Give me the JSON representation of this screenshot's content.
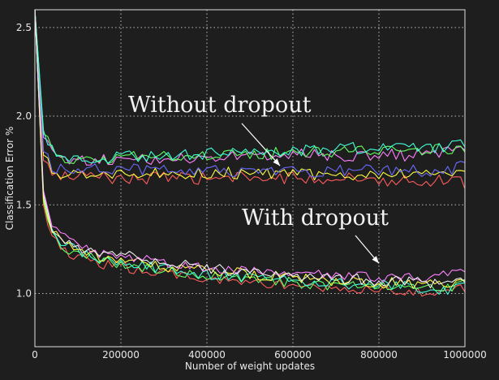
{
  "chart_data": {
    "type": "line",
    "title": "",
    "xlabel": "Number of weight updates",
    "ylabel": "Classification Error %",
    "xlim": [
      0,
      1000000
    ],
    "ylim": [
      0.7,
      2.6
    ],
    "xticks": [
      0,
      200000,
      400000,
      600000,
      800000,
      1000000
    ],
    "xtick_labels": [
      "0",
      "200000",
      "400000",
      "600000",
      "800000",
      "1000000"
    ],
    "yticks": [
      1.0,
      1.5,
      2.0,
      2.5
    ],
    "ytick_labels": [
      "1.0",
      "1.5",
      "2.0",
      "2.5"
    ],
    "grid": true,
    "legend": "none",
    "x": [
      0,
      20000,
      40000,
      60000,
      80000,
      100000,
      150000,
      200000,
      250000,
      300000,
      350000,
      400000,
      450000,
      500000,
      550000,
      600000,
      650000,
      700000,
      750000,
      800000,
      850000,
      900000,
      950000,
      1000000
    ],
    "series": [
      {
        "group": "without",
        "color": "#ff5c5c",
        "values": [
          2.55,
          1.75,
          1.68,
          1.66,
          1.66,
          1.66,
          1.66,
          1.65,
          1.65,
          1.65,
          1.65,
          1.65,
          1.65,
          1.65,
          1.65,
          1.65,
          1.65,
          1.65,
          1.65,
          1.64,
          1.64,
          1.64,
          1.64,
          1.62
        ]
      },
      {
        "group": "without",
        "color": "#ffff40",
        "values": [
          2.6,
          1.78,
          1.7,
          1.68,
          1.68,
          1.68,
          1.68,
          1.68,
          1.68,
          1.68,
          1.68,
          1.68,
          1.68,
          1.67,
          1.67,
          1.67,
          1.67,
          1.67,
          1.67,
          1.67,
          1.67,
          1.67,
          1.67,
          1.66
        ]
      },
      {
        "group": "without",
        "color": "#6a6aff",
        "values": [
          2.6,
          1.8,
          1.72,
          1.7,
          1.7,
          1.7,
          1.7,
          1.7,
          1.7,
          1.69,
          1.69,
          1.69,
          1.69,
          1.69,
          1.69,
          1.69,
          1.69,
          1.69,
          1.69,
          1.69,
          1.69,
          1.69,
          1.69,
          1.72
        ]
      },
      {
        "group": "without",
        "color": "#ff80ff",
        "values": [
          2.6,
          1.88,
          1.78,
          1.75,
          1.75,
          1.75,
          1.75,
          1.75,
          1.76,
          1.76,
          1.76,
          1.77,
          1.77,
          1.77,
          1.77,
          1.78,
          1.78,
          1.78,
          1.78,
          1.78,
          1.78,
          1.78,
          1.79,
          1.8
        ]
      },
      {
        "group": "without",
        "color": "#60ff60",
        "values": [
          2.6,
          1.9,
          1.8,
          1.77,
          1.76,
          1.76,
          1.76,
          1.76,
          1.77,
          1.77,
          1.77,
          1.78,
          1.78,
          1.79,
          1.79,
          1.79,
          1.8,
          1.8,
          1.8,
          1.8,
          1.81,
          1.81,
          1.81,
          1.8
        ]
      },
      {
        "group": "without",
        "color": "#40ffd8",
        "values": [
          2.6,
          1.92,
          1.82,
          1.78,
          1.77,
          1.77,
          1.77,
          1.77,
          1.78,
          1.78,
          1.79,
          1.79,
          1.8,
          1.8,
          1.8,
          1.81,
          1.81,
          1.81,
          1.82,
          1.82,
          1.82,
          1.82,
          1.83,
          1.84
        ]
      },
      {
        "group": "with",
        "color": "#ff5c5c",
        "values": [
          2.6,
          1.5,
          1.32,
          1.26,
          1.23,
          1.21,
          1.17,
          1.15,
          1.13,
          1.11,
          1.09,
          1.08,
          1.07,
          1.06,
          1.05,
          1.04,
          1.03,
          1.03,
          1.02,
          1.02,
          1.01,
          1.01,
          1.01,
          1.03
        ]
      },
      {
        "group": "with",
        "color": "#60ff60",
        "values": [
          2.6,
          1.52,
          1.35,
          1.28,
          1.25,
          1.23,
          1.19,
          1.17,
          1.15,
          1.13,
          1.11,
          1.1,
          1.09,
          1.08,
          1.07,
          1.06,
          1.05,
          1.05,
          1.04,
          1.04,
          1.03,
          1.03,
          1.03,
          1.05
        ]
      },
      {
        "group": "with",
        "color": "#40ffd8",
        "values": [
          2.6,
          1.55,
          1.37,
          1.3,
          1.26,
          1.24,
          1.2,
          1.18,
          1.16,
          1.14,
          1.12,
          1.11,
          1.1,
          1.09,
          1.08,
          1.07,
          1.06,
          1.06,
          1.05,
          1.05,
          1.04,
          1.03,
          1.02,
          1.04
        ]
      },
      {
        "group": "with",
        "color": "#ffff40",
        "values": [
          2.6,
          1.53,
          1.36,
          1.29,
          1.26,
          1.24,
          1.21,
          1.19,
          1.17,
          1.15,
          1.14,
          1.13,
          1.12,
          1.11,
          1.1,
          1.09,
          1.08,
          1.07,
          1.07,
          1.06,
          1.06,
          1.05,
          1.05,
          1.06
        ]
      },
      {
        "group": "with",
        "color": "#ff80ff",
        "values": [
          2.6,
          1.58,
          1.4,
          1.33,
          1.29,
          1.27,
          1.23,
          1.21,
          1.19,
          1.17,
          1.16,
          1.15,
          1.14,
          1.13,
          1.12,
          1.11,
          1.11,
          1.1,
          1.1,
          1.09,
          1.09,
          1.09,
          1.1,
          1.12
        ]
      },
      {
        "group": "with",
        "color": "#f0f0f0",
        "values": [
          2.6,
          1.56,
          1.38,
          1.31,
          1.28,
          1.26,
          1.24,
          1.22,
          1.2,
          1.18,
          1.16,
          1.14,
          1.13,
          1.12,
          1.11,
          1.1,
          1.09,
          1.08,
          1.08,
          1.07,
          1.07,
          1.06,
          1.06,
          1.07
        ]
      }
    ],
    "annotations": [
      {
        "text": "Without dropout",
        "arrow_to": [
          570000,
          1.72
        ]
      },
      {
        "text": "With dropout",
        "arrow_to": [
          800000,
          1.17
        ]
      }
    ]
  }
}
